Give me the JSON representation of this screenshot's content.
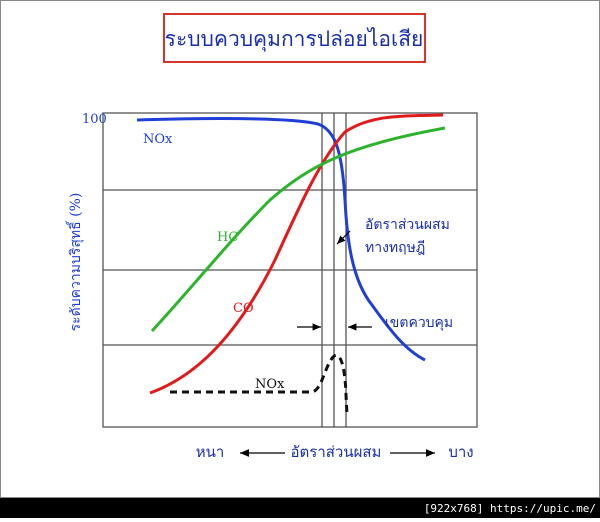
{
  "header": {
    "title": "ระบบควบคุมการปล่อยไอเสีย"
  },
  "y_axis": {
    "label": "ระดับความบริสุทธิ์ (%)",
    "top_label": "100"
  },
  "curve_labels": {
    "nox_top": "NOx",
    "hc": "HC",
    "co": "CO",
    "nox_bottom": "NOx"
  },
  "annotations": {
    "theoretical_ratio": [
      "อัตราส่วนผสม",
      "ทางทฤษฎี"
    ],
    "control_zone": "เขตควบคุม"
  },
  "x_axis": {
    "left": "หนา",
    "center": "อัตราส่วนผสม",
    "right": "บาง"
  },
  "footer": {
    "text": "[922x768] https://upic.me/"
  }
}
